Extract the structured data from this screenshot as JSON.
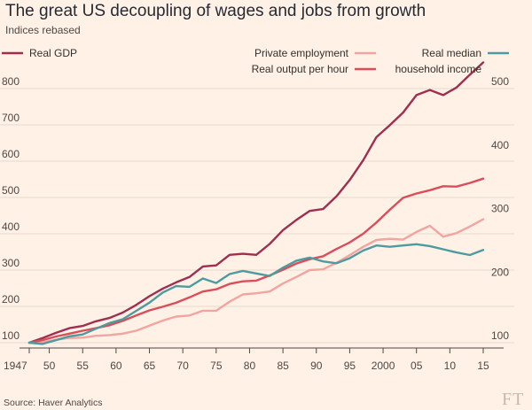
{
  "title": "The great US decoupling of wages and jobs from growth",
  "subtitle": "Indices rebased",
  "source": "Source: Haver Analytics",
  "logo": "FT",
  "chart_data": {
    "type": "line",
    "x": [
      1947,
      1949,
      1951,
      1953,
      1955,
      1957,
      1959,
      1961,
      1963,
      1965,
      1967,
      1969,
      1971,
      1973,
      1975,
      1977,
      1979,
      1981,
      1983,
      1985,
      1987,
      1989,
      1991,
      1993,
      1995,
      1997,
      1999,
      2001,
      2003,
      2005,
      2007,
      2009,
      2011,
      2013,
      2015
    ],
    "x_ticks": [
      1947,
      1950,
      1955,
      1960,
      1965,
      1970,
      1975,
      1980,
      1985,
      1990,
      1995,
      2000,
      2005,
      2010,
      2015
    ],
    "x_tick_labels": [
      "1947",
      "50",
      "55",
      "60",
      "65",
      "70",
      "75",
      "80",
      "85",
      "90",
      "95",
      "2000",
      "05",
      "10",
      "15"
    ],
    "xlim": [
      1947,
      2015
    ],
    "left_axis": {
      "ylim": [
        100,
        820
      ],
      "ticks": [
        100,
        200,
        300,
        400,
        500,
        600,
        700,
        800
      ]
    },
    "right_axis": {
      "ylim": [
        100,
        520
      ],
      "ticks": [
        100,
        200,
        300,
        400,
        500
      ]
    },
    "series": [
      {
        "name": "Real GDP",
        "axis": "left",
        "color": "#9e2f50",
        "values": [
          100,
          113,
          127,
          140,
          146,
          159,
          168,
          183,
          204,
          228,
          249,
          266,
          281,
          310,
          313,
          342,
          345,
          342,
          372,
          410,
          438,
          463,
          468,
          503,
          548,
          602,
          666,
          699,
          734,
          782,
          796,
          782,
          803,
          838,
          872
        ]
      },
      {
        "name": "Private employment",
        "axis": "left",
        "color": "#f2a5a0",
        "values": [
          100,
          101,
          108,
          113,
          114,
          119,
          121,
          125,
          133,
          147,
          161,
          172,
          175,
          188,
          188,
          213,
          233,
          236,
          241,
          263,
          281,
          300,
          302,
          320,
          341,
          364,
          383,
          386,
          384,
          405,
          422,
          392,
          402,
          420,
          440
        ]
      },
      {
        "name": "Real output per hour",
        "axis": "left",
        "color": "#db4d59",
        "values": [
          100,
          107,
          117,
          125,
          133,
          140,
          148,
          160,
          175,
          189,
          199,
          210,
          225,
          241,
          247,
          262,
          269,
          271,
          285,
          301,
          318,
          330,
          338,
          358,
          376,
          400,
          431,
          466,
          499,
          511,
          520,
          531,
          530,
          540,
          552
        ]
      },
      {
        "name": "Real median household income",
        "axis": "right",
        "color": "#4d9ba0",
        "values": [
          100,
          98,
          104,
          110,
          113,
          122,
          131,
          137,
          150,
          163,
          179,
          189,
          188,
          201,
          194,
          208,
          213,
          209,
          205,
          218,
          229,
          234,
          228,
          225,
          233,
          245,
          253,
          251,
          253,
          255,
          252,
          247,
          242,
          238,
          246
        ]
      }
    ],
    "legend": [
      {
        "label": "Real GDP",
        "color": "#9e2f50"
      },
      {
        "label": "Private employment",
        "color": "#f2a5a0"
      },
      {
        "label": "Real output per hour",
        "color": "#db4d59"
      },
      {
        "label": "Real median",
        "color": "#4d9ba0"
      },
      {
        "label": "household income",
        "color": "#4d9ba0"
      }
    ]
  }
}
